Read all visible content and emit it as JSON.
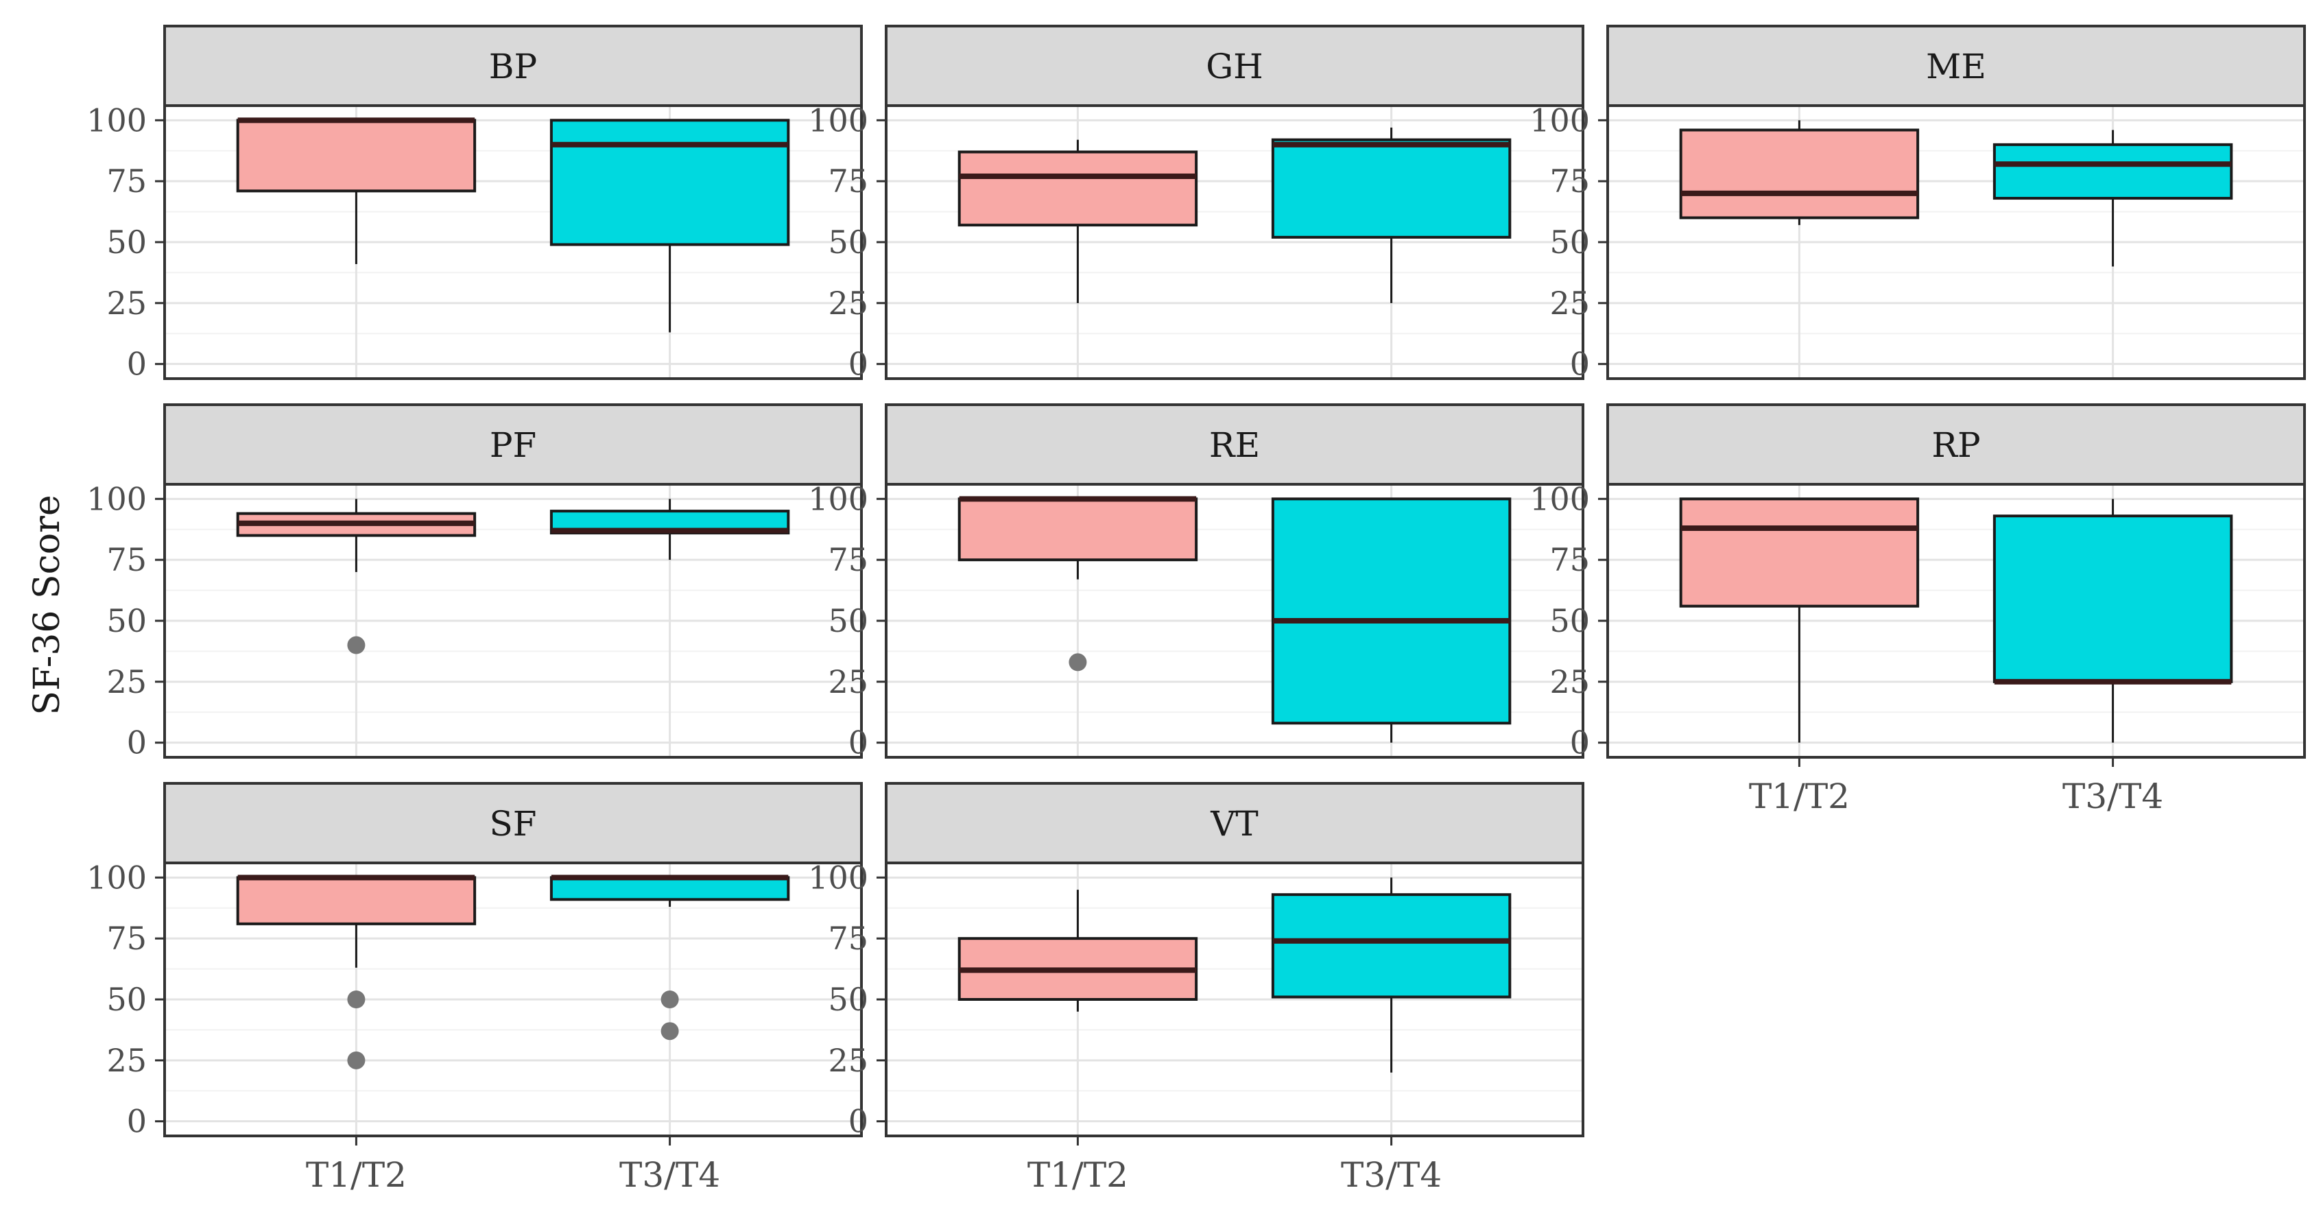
{
  "chart_data": {
    "type": "boxplot",
    "ylabel": "SF-36 Score",
    "categories": [
      "T1/T2",
      "T3/T4"
    ],
    "y_ticks": [
      0,
      25,
      50,
      75,
      100
    ],
    "ylim": [
      -6,
      106
    ],
    "grid": true,
    "colors": {
      "T1/T2": "#F8A9A6",
      "T3/T4": "#00D9DF"
    },
    "panels": [
      {
        "name": "BP",
        "boxes": [
          {
            "category": "T1/T2",
            "min": 41,
            "q1": 71,
            "median": 100,
            "q3": 100,
            "max": 100,
            "outliers": []
          },
          {
            "category": "T3/T4",
            "min": 13,
            "q1": 49,
            "median": 90,
            "q3": 100,
            "max": 100,
            "outliers": []
          }
        ]
      },
      {
        "name": "GH",
        "boxes": [
          {
            "category": "T1/T2",
            "min": 25,
            "q1": 57,
            "median": 77,
            "q3": 87,
            "max": 92,
            "outliers": []
          },
          {
            "category": "T3/T4",
            "min": 25,
            "q1": 52,
            "median": 90,
            "q3": 92,
            "max": 97,
            "outliers": []
          }
        ]
      },
      {
        "name": "ME",
        "boxes": [
          {
            "category": "T1/T2",
            "min": 57,
            "q1": 60,
            "median": 70,
            "q3": 96,
            "max": 100,
            "outliers": []
          },
          {
            "category": "T3/T4",
            "min": 40,
            "q1": 68,
            "median": 82,
            "q3": 90,
            "max": 96,
            "outliers": []
          }
        ]
      },
      {
        "name": "PF",
        "boxes": [
          {
            "category": "T1/T2",
            "min": 70,
            "q1": 85,
            "median": 90,
            "q3": 94,
            "max": 100,
            "outliers": [
              40
            ]
          },
          {
            "category": "T3/T4",
            "min": 75,
            "q1": 86,
            "median": 87,
            "q3": 95,
            "max": 100,
            "outliers": []
          }
        ]
      },
      {
        "name": "RE",
        "boxes": [
          {
            "category": "T1/T2",
            "min": 67,
            "q1": 75,
            "median": 100,
            "q3": 100,
            "max": 100,
            "outliers": [
              33
            ]
          },
          {
            "category": "T3/T4",
            "min": 0,
            "q1": 8,
            "median": 50,
            "q3": 100,
            "max": 100,
            "outliers": []
          }
        ]
      },
      {
        "name": "RP",
        "boxes": [
          {
            "category": "T1/T2",
            "min": 0,
            "q1": 56,
            "median": 88,
            "q3": 100,
            "max": 100,
            "outliers": []
          },
          {
            "category": "T3/T4",
            "min": 0,
            "q1": 25,
            "median": 25,
            "q3": 93,
            "max": 100,
            "outliers": []
          }
        ]
      },
      {
        "name": "SF",
        "boxes": [
          {
            "category": "T1/T2",
            "min": 63,
            "q1": 81,
            "median": 100,
            "q3": 100,
            "max": 100,
            "outliers": [
              50,
              25
            ]
          },
          {
            "category": "T3/T4",
            "min": 88,
            "q1": 91,
            "median": 100,
            "q3": 100,
            "max": 100,
            "outliers": [
              50,
              37
            ]
          }
        ]
      },
      {
        "name": "VT",
        "boxes": [
          {
            "category": "T1/T2",
            "min": 45,
            "q1": 50,
            "median": 62,
            "q3": 75,
            "max": 95,
            "outliers": []
          },
          {
            "category": "T3/T4",
            "min": 20,
            "q1": 51,
            "median": 74,
            "q3": 93,
            "max": 100,
            "outliers": []
          }
        ]
      }
    ]
  }
}
